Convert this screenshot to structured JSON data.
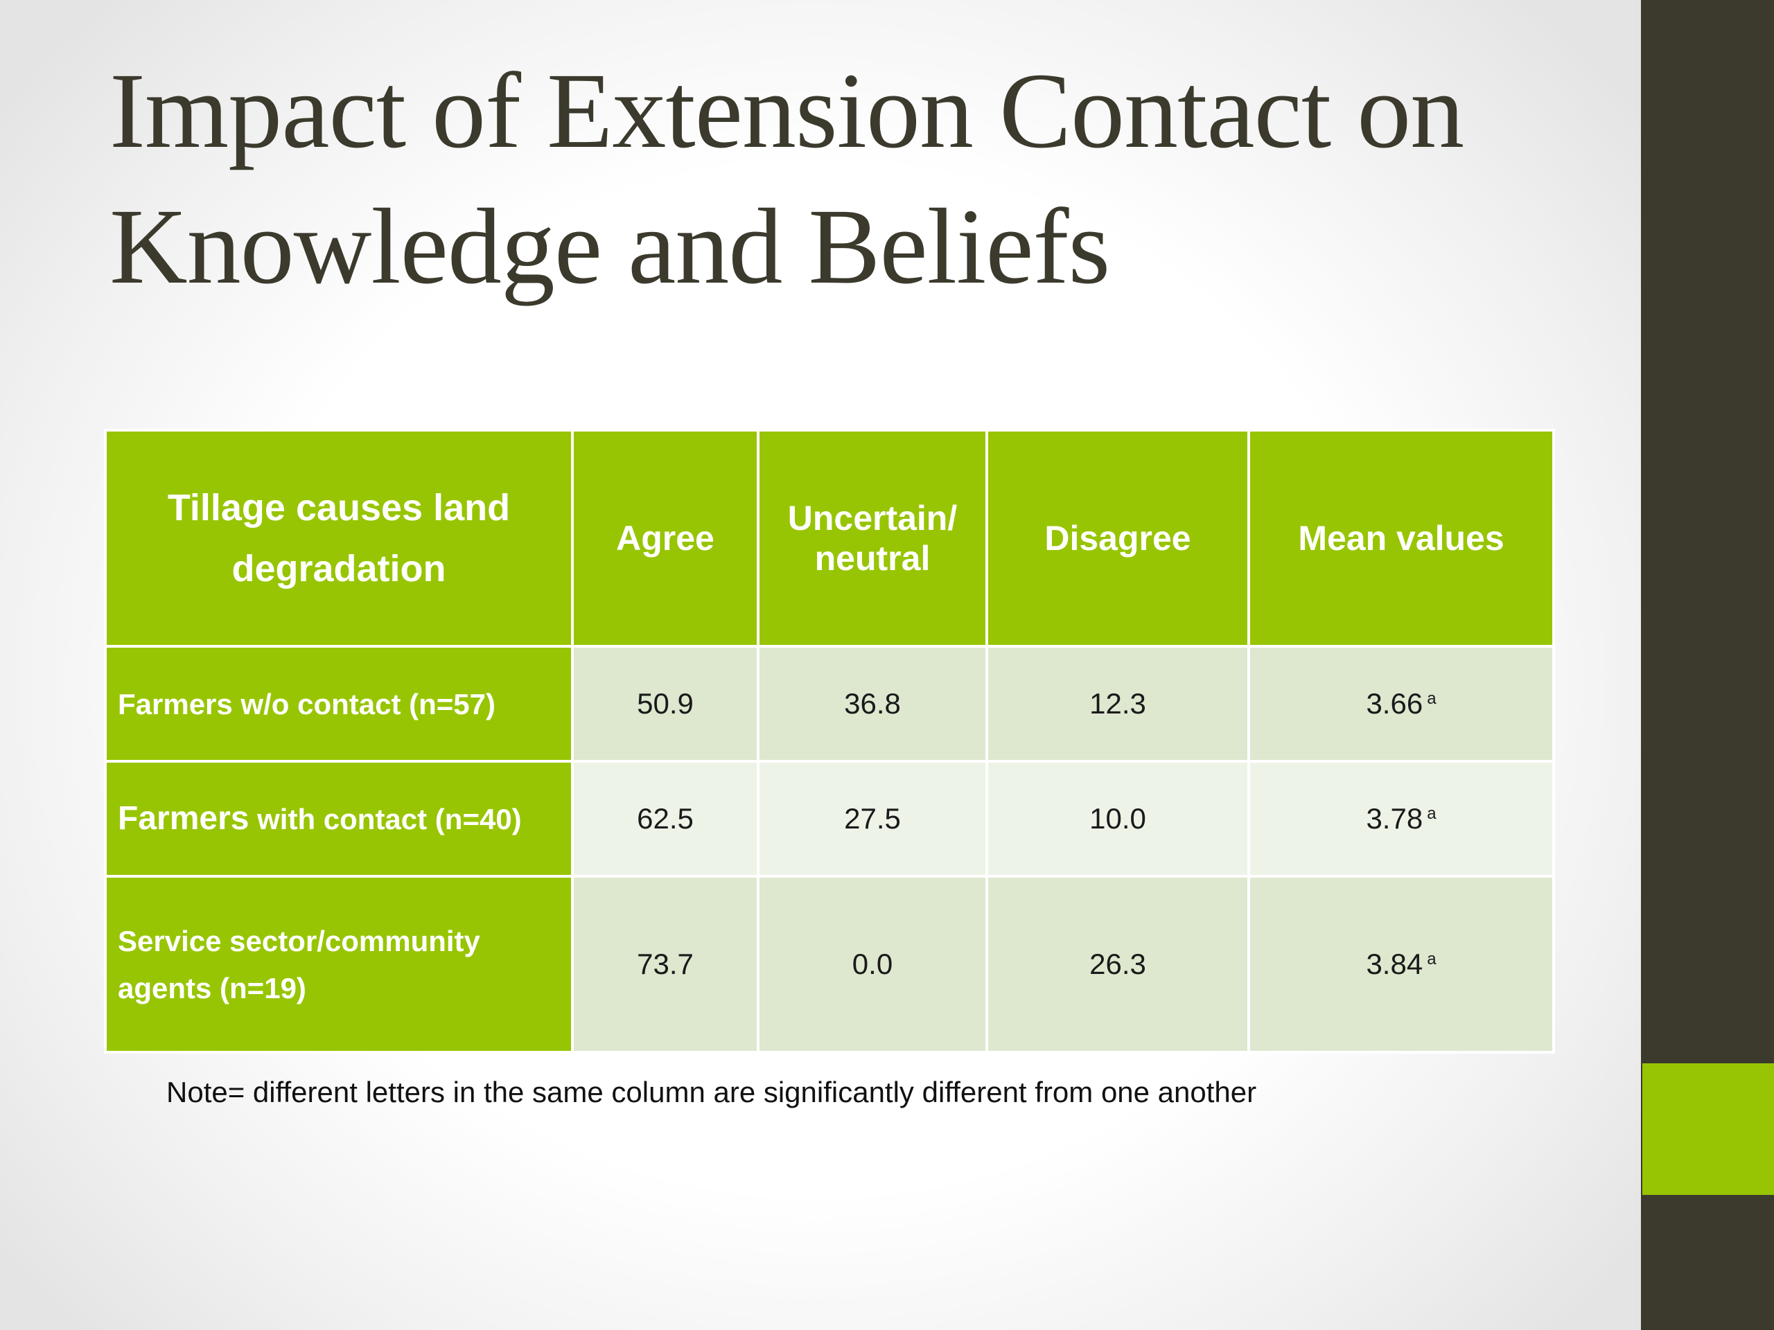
{
  "slide": {
    "title_line1": "Impact of Extension Contact on",
    "title_line2": "Knowledge and Beliefs",
    "note": "Note= different letters in the same column are significantly different from one another",
    "colors": {
      "accent_green": "#97c503",
      "dark_bar": "#3b3a2d",
      "row_light": "#dde8cf",
      "row_lighter": "#eef3e8"
    }
  },
  "table": {
    "headers": [
      "Tillage causes land degradation",
      "Agree",
      "Uncertain/ neutral",
      "Disagree",
      "Mean values"
    ],
    "rows": [
      {
        "label_big": "",
        "label": "Farmers w/o contact (n=57)",
        "agree": "50.9",
        "neutral": "36.8",
        "disagree": "12.3",
        "mean": "3.66",
        "mean_sig": "a"
      },
      {
        "label_big": "Farmers",
        "label": " with contact (n=40)",
        "agree": "62.5",
        "neutral": "27.5",
        "disagree": "10.0",
        "mean": "3.78",
        "mean_sig": "a"
      },
      {
        "label_big": "",
        "label": "Service sector/community agents (n=19)",
        "agree": "73.7",
        "neutral": "0.0",
        "disagree": "26.3",
        "mean": "3.84",
        "mean_sig": "a"
      }
    ]
  }
}
